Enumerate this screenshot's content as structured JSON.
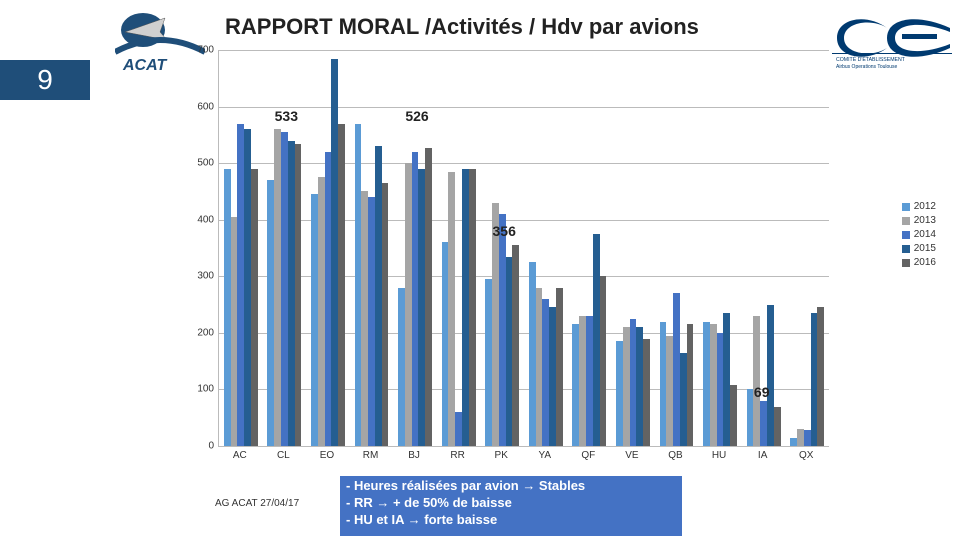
{
  "page_number": "9",
  "title": "RAPPORT MORAL /Activités / Hdv par avions",
  "footer_date": "AG ACAT 27/04/17",
  "logo_left": {
    "label": "ACAT",
    "primary": "#1f4e79",
    "secondary": "#808080"
  },
  "logo_right": {
    "primary": "#003a70",
    "text1": "COMITÉ D'ÉTABLISSEMENT",
    "text2": "Airbus Operations Toulouse"
  },
  "chart": {
    "type": "bar",
    "ylim": [
      0,
      700
    ],
    "ytick_step": 100,
    "background_color": "#ffffff",
    "grid_color": "#bbbbbb",
    "label_fontsize": 10,
    "group_count": 14,
    "bars_per_group": 5,
    "bar_colors": [
      "#5b9bd5",
      "#a5a5a5",
      "#4472c4",
      "#255e91",
      "#636363"
    ],
    "series_names": [
      "2012",
      "2013",
      "2014",
      "2015",
      "2016"
    ],
    "categories": [
      "AC",
      "CL",
      "EO",
      "RM",
      "BJ",
      "RR",
      "PK",
      "YA",
      "QF",
      "VE",
      "QB",
      "HU",
      "IA",
      "QX"
    ],
    "values": [
      [
        490,
        405,
        570,
        560,
        490
      ],
      [
        470,
        560,
        555,
        540,
        533
      ],
      [
        445,
        475,
        520,
        685,
        570
      ],
      [
        570,
        450,
        440,
        530,
        465
      ],
      [
        280,
        500,
        520,
        490,
        526
      ],
      [
        360,
        485,
        60,
        490,
        490
      ],
      [
        295,
        430,
        410,
        335,
        356
      ],
      [
        325,
        280,
        260,
        245,
        280
      ],
      [
        215,
        230,
        230,
        375,
        300
      ],
      [
        185,
        210,
        225,
        210,
        190
      ],
      [
        220,
        195,
        270,
        165,
        215
      ],
      [
        220,
        215,
        200,
        235,
        108
      ],
      [
        100,
        230,
        80,
        250,
        69
      ],
      [
        15,
        30,
        28,
        235,
        245
      ]
    ],
    "annotations": [
      {
        "text": "533",
        "group": 1,
        "y": 598
      },
      {
        "text": "526",
        "group": 4,
        "y": 598
      },
      {
        "text": "356",
        "group": 6,
        "y": 395
      },
      {
        "text": "69",
        "group": 12,
        "y": 110
      }
    ]
  },
  "notes": {
    "line1_a": "- Heures réalisées par avion ",
    "line1_b": " Stables",
    "line2_a": "- RR ",
    "line2_b": " + de 50% de baisse",
    "line3_a": "- HU et IA ",
    "line3_b": " forte baisse",
    "arrow": "→",
    "bg": "#4472c4"
  }
}
